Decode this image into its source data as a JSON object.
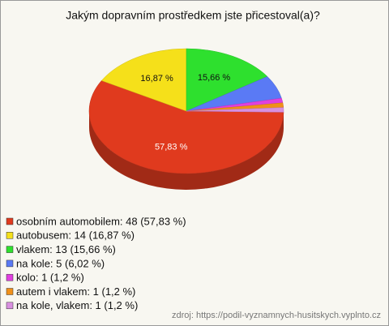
{
  "chart_data": {
    "type": "pie3d",
    "title": "Jakým dopravním prostředkem jste přicestoval(a)?",
    "categories": [
      "osobním automobilem: 48 (57,83 %)",
      "autobusem: 14 (16,87 %)",
      "vlakem: 13 (15,66 %)",
      "na kole: 5 (6,02 %)",
      "kolo: 1 (1,2 %)",
      "autem i vlakem: 1 (1,2 %)",
      "na kole, vlakem: 1 (1,2 %)"
    ],
    "values": [
      57.83,
      16.87,
      15.66,
      6.02,
      1.2,
      1.2,
      1.2
    ],
    "value_labels": [
      "57,83 %",
      "16,87 %",
      "15,66 %",
      null,
      null,
      null,
      null
    ],
    "colors": [
      "#e03a1e",
      "#f5e01a",
      "#2ee02e",
      "#5a7af5",
      "#e040e0",
      "#f0901a",
      "#d890e0"
    ],
    "source": "zdroj: https://podil-vyznamnych-husitskych.vyplnto.cz"
  }
}
